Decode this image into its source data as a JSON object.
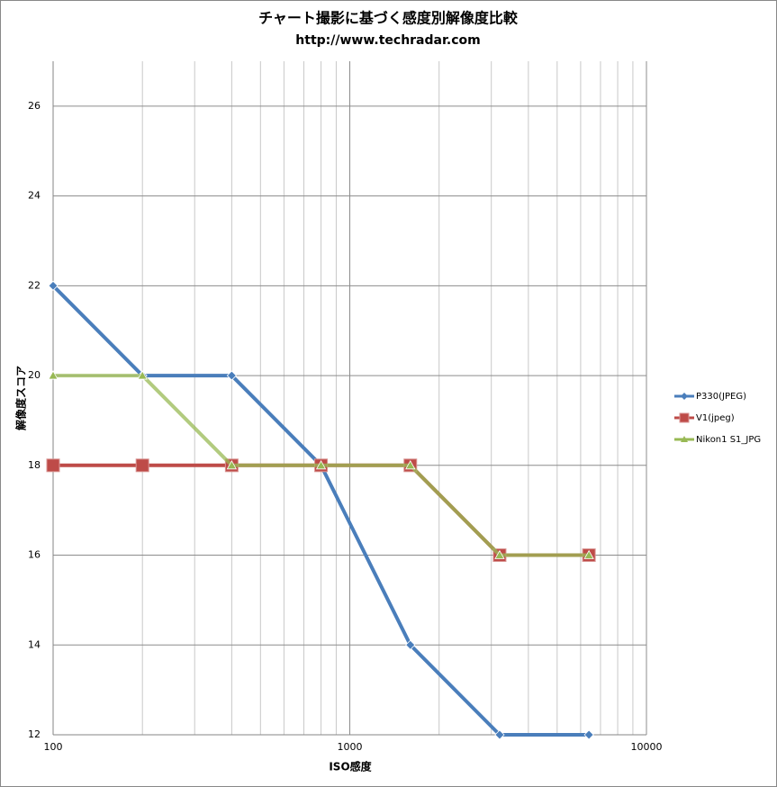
{
  "chart_data": {
    "type": "line",
    "title": "チャート撮影に基づく感度別解像度比較",
    "subtitle": "http://www.techradar.com",
    "x_label": "ISO感度",
    "y_label": "解像度スコア",
    "x": [
      100,
      200,
      400,
      800,
      1600,
      3200,
      6400
    ],
    "x_log": true,
    "xlim": [
      100,
      10000
    ],
    "xticks": [
      100,
      1000,
      10000
    ],
    "ylim": [
      12,
      27
    ],
    "yticks": [
      12,
      14,
      16,
      18,
      20,
      22,
      24,
      26
    ],
    "grid": true,
    "legend": "right",
    "series": [
      {
        "name": "P330(JPEG)",
        "color": "#4a7ebb",
        "marker": "diamond",
        "values": [
          22,
          20,
          20,
          18,
          14,
          12,
          12
        ]
      },
      {
        "name": "V1(jpeg)",
        "color": "#be4b48",
        "marker": "square",
        "values": [
          18,
          18,
          18,
          18,
          18,
          16,
          16
        ]
      },
      {
        "name": "Nikon1 S1_JPG",
        "color": "#98b954",
        "marker": "triangle",
        "values": [
          20,
          20,
          18,
          18,
          18,
          16,
          16
        ]
      }
    ]
  }
}
